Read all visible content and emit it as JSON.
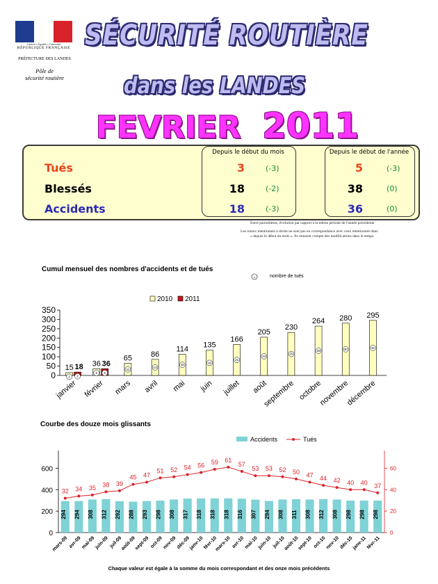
{
  "header": {
    "motto": "Liberté • Égalité • Fraternité",
    "republic": "RÉPUBLIQUE FRANÇAISE",
    "prefecture": "PRÉFECTURE DES LANDES",
    "pole_line1": "Pôle de",
    "pole_line2": "sécurité routière",
    "title_line1": "SÉCURITÉ ROUTIÈRE",
    "title_line2": "dans les LANDES",
    "month": "FEVRIER",
    "year": "2011"
  },
  "colors": {
    "tues": "#e8461b",
    "blesses": "#000000",
    "accidents": "#2b2bb5",
    "delta": "#1a8a3c",
    "bar2010": "#ffffc0",
    "bar2011": "#c0161a",
    "accidents_bar": "#7fd2d6",
    "tues_line": "#d8232a"
  },
  "stats": {
    "header_month": "Depuis le début du mois",
    "header_year": "Depuis le début de l'année",
    "rows": [
      {
        "label": "Tués",
        "month_value": "3",
        "month_delta": "(-3)",
        "year_value": "5",
        "year_delta": "(-3)"
      },
      {
        "label": "Blessés",
        "month_value": "18",
        "month_delta": "(-2)",
        "year_value": "38",
        "year_delta": "(0)"
      },
      {
        "label": "Accidents",
        "month_value": "18",
        "month_delta": "(-3)",
        "year_value": "36",
        "year_delta": "(0)"
      }
    ],
    "note1": "Entre parenthèses, évolution par rapport à la même période de l'année précédente",
    "note2": "Les totaux mentionnés à droite ne sont pas en correspondance avec ceux mentionnés dans",
    "note3": "« depuis le début du mois ». Ils tiennent compte des modifications dans le temps."
  },
  "chart_data": [
    {
      "type": "bar",
      "title": "Cumul mensuel des nombres d'accidents  et de tués",
      "marker_legend": "nombre de tués",
      "marker_legend_symbol": "x",
      "categories": [
        "janvier",
        "février",
        "mars",
        "avril",
        "mai",
        "juin",
        "juillet",
        "août",
        "septembre",
        "octobre",
        "novembre",
        "décembre"
      ],
      "series": [
        {
          "name": "2010",
          "values": [
            15,
            36,
            65,
            86,
            114,
            135,
            166,
            205,
            230,
            264,
            280,
            295
          ]
        },
        {
          "name": "2011",
          "values": [
            18,
            36,
            null,
            null,
            null,
            null,
            null,
            null,
            null,
            null,
            null,
            null
          ]
        }
      ],
      "tues_markers_2010": [
        "2",
        "8",
        "11",
        "13",
        "15",
        "18",
        "21",
        "24",
        "25",
        "28",
        "30",
        "32"
      ],
      "tues_markers_2011": [
        "2",
        "5"
      ],
      "ylim": [
        0,
        350
      ],
      "yticks": [
        0,
        50,
        100,
        150,
        200,
        250,
        300,
        350
      ],
      "legend": "top-center"
    },
    {
      "type": "bar",
      "title": "Courbe des douze mois glissants",
      "categories": [
        "mars-09",
        "avr-09",
        "mai-09",
        "juin-09",
        "juil-09",
        "août-09",
        "sept-09",
        "oct-09",
        "nov-09",
        "déc-09",
        "janv-10",
        "févr-10",
        "mars-10",
        "avr-10",
        "mai-10",
        "juin-10",
        "juil-10",
        "août-10",
        "sept-10",
        "oct-10",
        "nov-10",
        "déc-10",
        "janv-11",
        "févr-11"
      ],
      "series": [
        {
          "name": "Accidents",
          "type": "bar",
          "axis": "left",
          "values": [
            294,
            294,
            308,
            312,
            292,
            288,
            293,
            298,
            308,
            317,
            318,
            318,
            318,
            316,
            307,
            294,
            308,
            311,
            308,
            312,
            308,
            298,
            298,
            298
          ]
        },
        {
          "name": "Tués",
          "type": "line",
          "axis": "right",
          "values": [
            32,
            34,
            35,
            38,
            39,
            45,
            47,
            51,
            52,
            54,
            56,
            59,
            61,
            57,
            53,
            53,
            52,
            50,
            47,
            44,
            42,
            40,
            40,
            37
          ]
        }
      ],
      "ylim_left": [
        0,
        700
      ],
      "yticks_left": [
        0,
        200,
        400,
        600
      ],
      "ylim_right": [
        0,
        70
      ],
      "yticks_right": [
        0,
        20,
        40,
        60
      ],
      "legend": "top-center",
      "footnote": "Chaque valeur est égale à la somme du mois correspondant et des onze mois précédents"
    }
  ]
}
